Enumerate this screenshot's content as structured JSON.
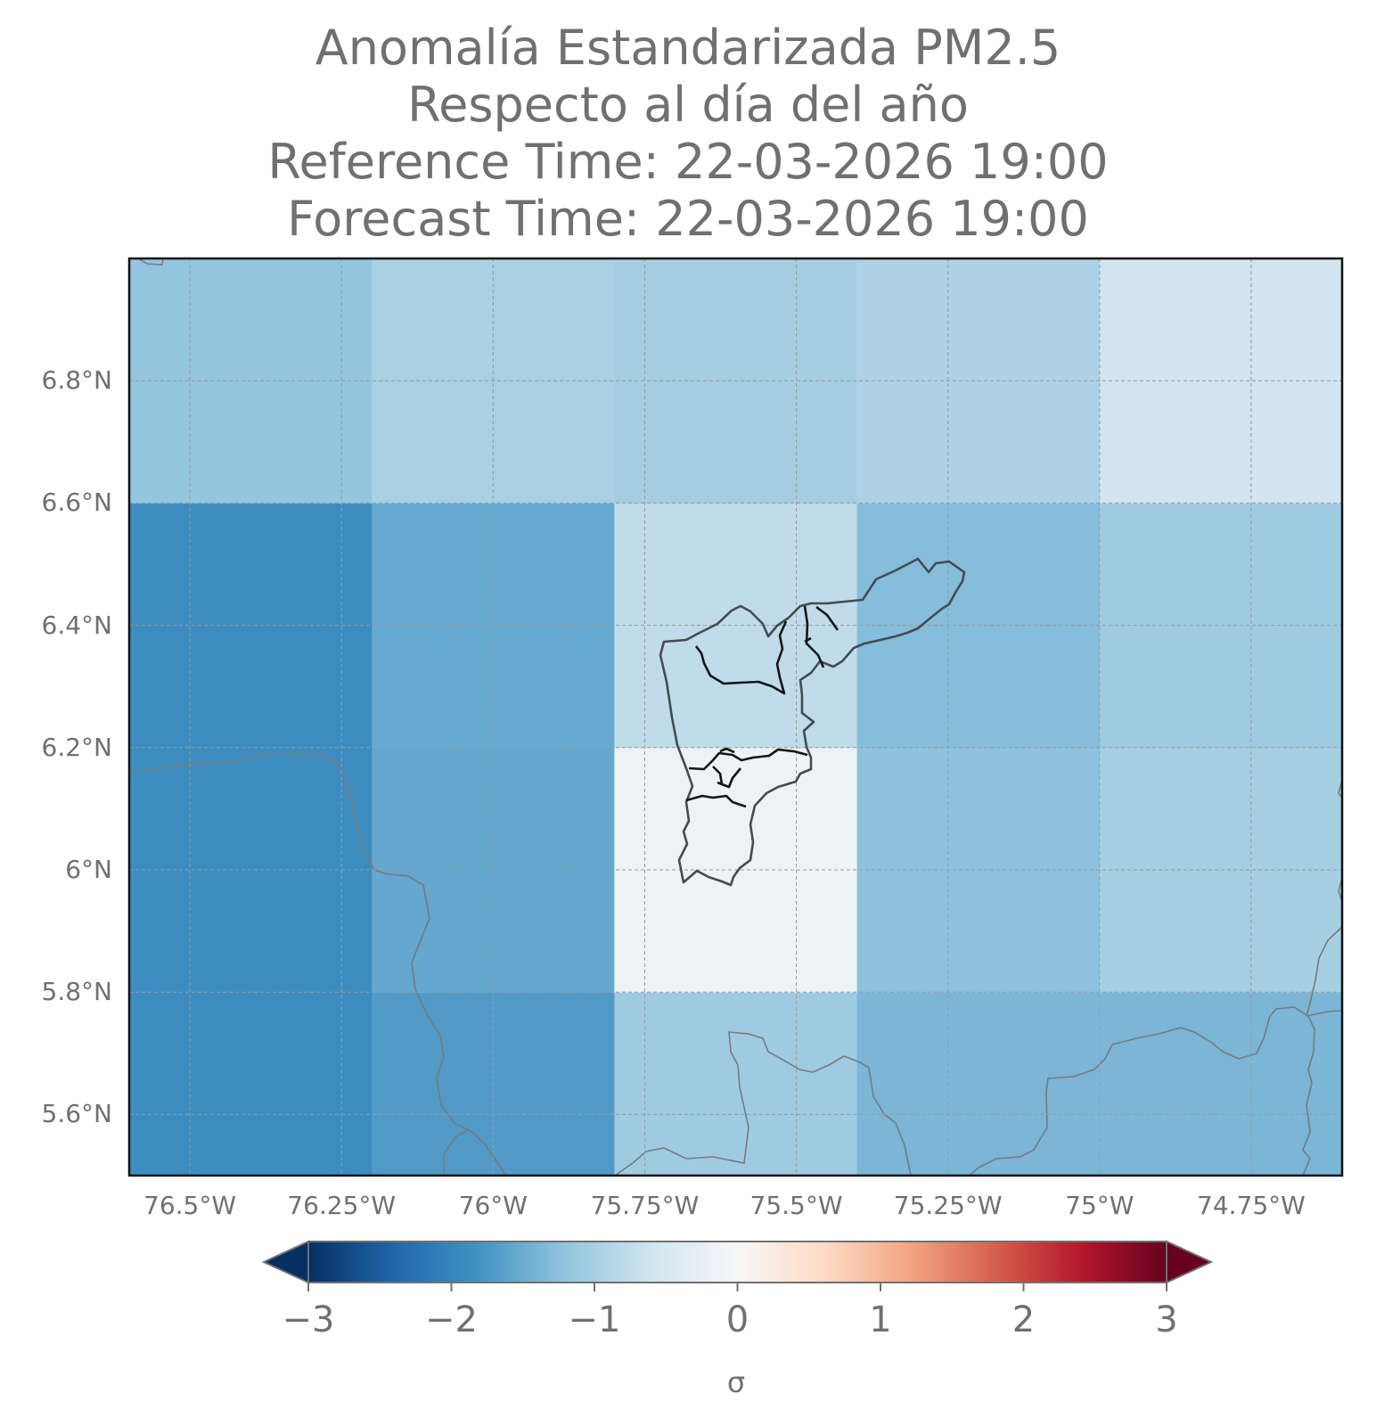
{
  "title": {
    "line1": "Anomalía Estandarizada PM2.5",
    "line2": "Respecto al día del año",
    "line3": "Reference Time: 22-03-2026 19:00",
    "line4": "Forecast Time: 22-03-2026 19:00"
  },
  "map": {
    "lon_range": [
      -76.6,
      -74.6
    ],
    "lat_range": [
      5.5,
      7.0
    ],
    "grid": true,
    "lat_ticks": [
      {
        "label": "6.8°N",
        "value": 6.8
      },
      {
        "label": "6.6°N",
        "value": 6.6
      },
      {
        "label": "6.4°N",
        "value": 6.4
      },
      {
        "label": "6.2°N",
        "value": 6.2
      },
      {
        "label": "6°N",
        "value": 6.0
      },
      {
        "label": "5.8°N",
        "value": 5.8
      },
      {
        "label": "5.6°N",
        "value": 5.6
      }
    ],
    "lon_ticks": [
      {
        "label": "76.5°W",
        "value": -76.5
      },
      {
        "label": "76.25°W",
        "value": -76.25
      },
      {
        "label": "76°W",
        "value": -76.0
      },
      {
        "label": "75.75°W",
        "value": -75.75
      },
      {
        "label": "75.5°W",
        "value": -75.5
      },
      {
        "label": "75.25°W",
        "value": -75.25
      },
      {
        "label": "75°W",
        "value": -75.0
      },
      {
        "label": "74.75°W",
        "value": -74.75
      }
    ],
    "cells": {
      "lon_edges": [
        -76.6,
        -76.2,
        -75.8,
        -75.4,
        -75.0,
        -74.6
      ],
      "lat_edges": [
        5.5,
        5.8,
        6.2,
        6.6,
        7.0
      ],
      "anomaly_rows_bottom_to_top": [
        [
          -1.8,
          -1.6,
          -0.9,
          -1.1,
          -1.1
        ],
        [
          -1.8,
          -1.4,
          -0.05,
          -0.9,
          -0.8
        ],
        [
          -1.8,
          -1.4,
          -0.6,
          -1.0,
          -0.9
        ],
        [
          -1.0,
          -0.8,
          -0.8,
          -0.75,
          -0.45
        ]
      ]
    },
    "colors": {
      "cells_bottom_to_top": [
        [
          "#3d8dc0",
          "#519ac7",
          "#9ecbe2",
          "#7bb6d7",
          "#7bb6d7"
        ],
        [
          "#3d8dc0",
          "#64a7cf",
          "#edf2f5",
          "#8ec2df",
          "#a6cfe3"
        ],
        [
          "#3d8dc0",
          "#67aad1",
          "#c0dcea",
          "#86bddb",
          "#9ecbe2"
        ],
        [
          "#94c5df",
          "#a9d0e3",
          "#a6cee3",
          "#aed2e5",
          "#d1e4ef"
        ]
      ],
      "grid": "#9a9a9a",
      "boundary": "#1a1a1a",
      "coast": "#7a7a7a"
    }
  },
  "colorbar": {
    "ticks": [
      "−3",
      "−2",
      "−1",
      "0",
      "1",
      "2",
      "3"
    ],
    "min": -3,
    "max": 3,
    "unit": "σ",
    "stops": [
      "#053061",
      "#2166ac",
      "#4393c3",
      "#92c5de",
      "#d1e5f0",
      "#f7f7f7",
      "#fddbc7",
      "#f4a582",
      "#d6604d",
      "#b2182b",
      "#67001f"
    ]
  }
}
